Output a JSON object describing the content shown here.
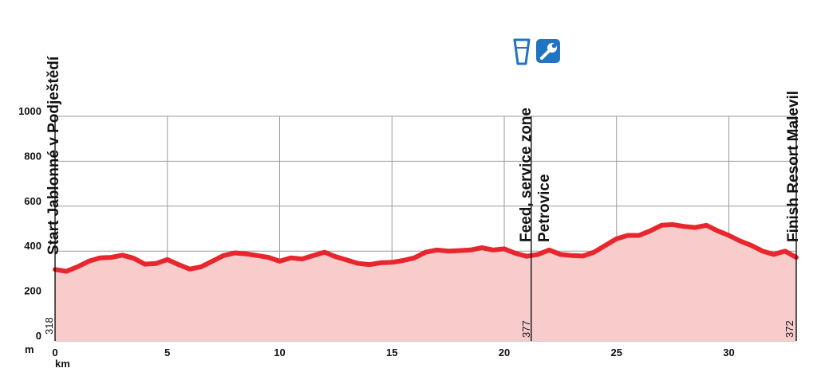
{
  "chart_data": {
    "type": "area",
    "title": "",
    "xlabel": "km",
    "ylabel": "m",
    "xlim": [
      0,
      33
    ],
    "ylim": [
      0,
      1000
    ],
    "x_ticks": [
      0,
      5,
      10,
      15,
      20,
      25,
      30
    ],
    "y_ticks": [
      0,
      200,
      400,
      600,
      800,
      1000
    ],
    "grid": true,
    "colors": {
      "line": "#e8262e",
      "fill": "#f9cccc",
      "grid": "#9a9a9a",
      "icon": "#2173c4"
    },
    "series": [
      {
        "x": [
          0,
          0.5,
          1,
          1.5,
          2,
          2.5,
          3,
          3.5,
          4,
          4.5,
          5,
          5.5,
          6,
          6.5,
          7,
          7.5,
          8,
          8.5,
          9,
          9.5,
          10,
          10.5,
          11,
          11.5,
          12,
          12.5,
          13,
          13.5,
          14,
          14.5,
          15,
          15.5,
          16,
          16.5,
          17,
          17.5,
          18,
          18.5,
          19,
          19.5,
          20,
          20.5,
          21,
          21.5,
          22,
          22.5,
          23,
          23.5,
          24,
          24.5,
          25,
          25.5,
          26,
          26.5,
          27,
          27.5,
          28,
          28.5,
          29,
          29.5,
          30,
          30.5,
          31,
          31.5,
          32,
          32.5,
          33
        ],
        "values": [
          318,
          310,
          330,
          355,
          370,
          372,
          382,
          368,
          342,
          345,
          362,
          340,
          320,
          330,
          355,
          380,
          392,
          388,
          380,
          372,
          355,
          370,
          365,
          380,
          395,
          375,
          360,
          345,
          340,
          348,
          350,
          358,
          370,
          395,
          405,
          400,
          402,
          405,
          415,
          405,
          410,
          390,
          377,
          385,
          405,
          385,
          380,
          378,
          395,
          425,
          455,
          470,
          470,
          490,
          515,
          518,
          510,
          505,
          515,
          490,
          470,
          445,
          425,
          400,
          385,
          400,
          372
        ]
      }
    ]
  },
  "waypoints": [
    {
      "km": 0,
      "label": "Start Jablonné v Podještědí",
      "altitude": "318"
    },
    {
      "km": 21.2,
      "label_line1": "Feed, service zone",
      "label_line2": "Petrovice",
      "altitude": "377",
      "icons": [
        "water-cup",
        "wrench"
      ]
    },
    {
      "km": 33,
      "label": "Finish Resort Malevil",
      "altitude": "372"
    }
  ]
}
